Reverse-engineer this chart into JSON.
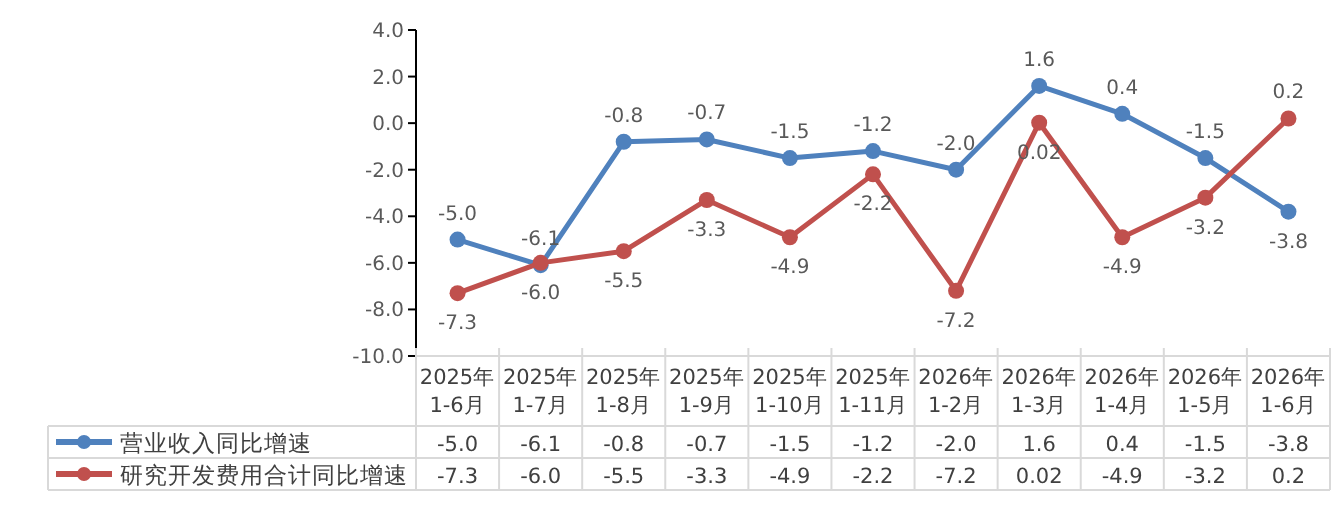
{
  "chart_data": {
    "type": "line",
    "categories": [
      "2025年 1-6月",
      "2025年 1-7月",
      "2025年 1-8月",
      "2025年 1-9月",
      "2025年 1-10月",
      "2025年 1-11月",
      "2026年 1-2月",
      "2026年 1-3月",
      "2026年 1-4月",
      "2026年 1-5月",
      "2026年 1-6月"
    ],
    "series": [
      {
        "name": "营业收入同比增速",
        "color": "#4f81bd",
        "values": [
          -5.0,
          -6.1,
          -0.8,
          -0.7,
          -1.5,
          -1.2,
          -2.0,
          1.6,
          0.4,
          -1.5,
          -3.8
        ],
        "value_labels": [
          "-5.0",
          "-6.1",
          "-0.8",
          "-0.7",
          "-1.5",
          "-1.2",
          "-2.0",
          "1.6",
          "0.4",
          "-1.5",
          "-3.8"
        ]
      },
      {
        "name": "研究开发费用合计同比增速",
        "color": "#c0504d",
        "values": [
          -7.3,
          -6.0,
          -5.5,
          -3.3,
          -4.9,
          -2.2,
          -7.2,
          0.02,
          -4.9,
          -3.2,
          0.2
        ],
        "value_labels": [
          "-7.3",
          "-6.0",
          "-5.5",
          "-3.3",
          "-4.9",
          "-2.2",
          "-7.2",
          "0.02",
          "-4.9",
          "-3.2",
          "0.2"
        ]
      }
    ],
    "ylim": [
      -10,
      4
    ],
    "yticks": [
      {
        "value": -10,
        "label": "-10.0"
      },
      {
        "value": -8,
        "label": "-8.0"
      },
      {
        "value": -6,
        "label": "-6.0"
      },
      {
        "value": -4,
        "label": "-4.0"
      },
      {
        "value": -2,
        "label": "-2.0"
      },
      {
        "value": 0,
        "label": "0.0"
      },
      {
        "value": 2,
        "label": "2.0"
      },
      {
        "value": 4,
        "label": "4.0"
      }
    ],
    "legend": "bottom left",
    "marker": "circle",
    "line_style": "solid"
  }
}
